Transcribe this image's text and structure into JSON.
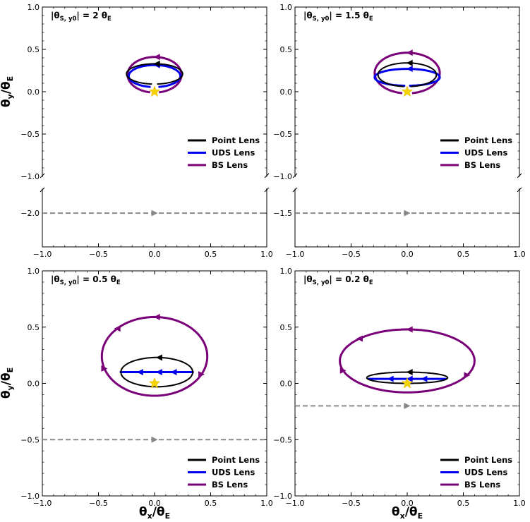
{
  "chart_data": [
    {
      "type": "line",
      "annotation": "|θ_S,y0| = 2 θ_E",
      "annotation_main": "|θ",
      "annotation_sub": "S, y0",
      "annotation_tail": "| = 2 θ",
      "annotation_tail_sub": "E",
      "xlabel": "θx/θE",
      "ylabel": "θy/θE",
      "xlim": [
        -1,
        1
      ],
      "ylim_upper": [
        -1,
        1
      ],
      "ylim_lower": [
        -2.35,
        -1.75
      ],
      "x_ticks": [
        "−1.0",
        "−0.5",
        "0.0",
        "0.5",
        "1.0"
      ],
      "y_ticks_upper": [
        "−1.0",
        "−0.5",
        "0.0",
        "0.5",
        "1.0"
      ],
      "y_ticks_lower": [
        "−2.0"
      ],
      "source_track_y": -2.0,
      "lens_star": [
        0.0,
        0.0
      ],
      "series": [
        {
          "name": "Point Lens",
          "color": "#000000",
          "cx": 0.0,
          "cy": 0.21,
          "rx": 0.25,
          "ry": 0.12,
          "gap": 0.18
        },
        {
          "name": "UDS Lens",
          "color": "#0000ee",
          "cx": 0.0,
          "cy": 0.185,
          "rx": 0.23,
          "ry": 0.13,
          "gap": 0.3
        },
        {
          "name": "BS Lens",
          "color": "#7a007a",
          "cx": 0.0,
          "cy": 0.2,
          "rx": 0.24,
          "ry": 0.21,
          "gap": 0.33
        }
      ]
    },
    {
      "type": "line",
      "annotation": "|θ_S,y0| = 1.5 θ_E",
      "annotation_main": "|θ",
      "annotation_sub": "S, y0",
      "annotation_tail": "| = 1.5 θ",
      "annotation_tail_sub": "E",
      "xlabel": "θx/θE",
      "ylabel": "θy/θE",
      "xlim": [
        -1,
        1
      ],
      "ylim_upper": [
        -1,
        1
      ],
      "ylim_lower": [
        -1.85,
        -1.25
      ],
      "x_ticks": [
        "−1.0",
        "−0.5",
        "0.0",
        "0.5",
        "1.0"
      ],
      "y_ticks_upper": [
        "−1.0",
        "−0.5",
        "0.0",
        "0.5",
        "1.0"
      ],
      "y_ticks_lower": [
        "−1.5"
      ],
      "source_track_y": -1.5,
      "lens_star": [
        0.0,
        0.0
      ],
      "series": [
        {
          "name": "Point Lens",
          "color": "#000000",
          "cx": 0.0,
          "cy": 0.2,
          "rx": 0.26,
          "ry": 0.14,
          "gap": 0.22
        },
        {
          "name": "UDS Lens",
          "color": "#0000ee",
          "cx": 0.0,
          "cy": 0.17,
          "rx": 0.29,
          "ry": 0.1,
          "gap": 0.12
        },
        {
          "name": "BS Lens",
          "color": "#7a007a",
          "cx": 0.0,
          "cy": 0.22,
          "rx": 0.29,
          "ry": 0.24,
          "gap": 0.3
        }
      ]
    },
    {
      "type": "line",
      "annotation": "|θ_S,y0| = 0.5 θ_E",
      "annotation_main": "|θ",
      "annotation_sub": "S, y0",
      "annotation_tail": "| = 0.5 θ",
      "annotation_tail_sub": "E",
      "xlabel": "θx/θE",
      "ylabel": "θy/θE",
      "xlim": [
        -1,
        1
      ],
      "ylim": [
        -1,
        1
      ],
      "x_ticks": [
        "−1.0",
        "−0.5",
        "0.0",
        "0.5",
        "1.0"
      ],
      "y_ticks": [
        "−1.0",
        "−0.5",
        "0.0",
        "0.5",
        "1.0"
      ],
      "source_track_y": -0.5,
      "lens_star": [
        0.0,
        0.0
      ],
      "series": [
        {
          "name": "Point Lens",
          "color": "#000000",
          "cx": 0.02,
          "cy": 0.1,
          "rx": 0.32,
          "ry": 0.13,
          "gap": 0.0
        },
        {
          "name": "UDS Lens",
          "color": "#0000ee",
          "cx": 0.02,
          "cy": 0.1,
          "rx": 0.33,
          "ry": 0.0,
          "gap": 0.0
        },
        {
          "name": "BS Lens",
          "color": "#7a007a",
          "cx": 0.0,
          "cy": 0.24,
          "rx": 0.47,
          "ry": 0.35,
          "gap": 0.0
        }
      ]
    },
    {
      "type": "line",
      "annotation": "|θ_S,y0| = 0.2 θ_E",
      "annotation_main": "|θ",
      "annotation_sub": "S, y0",
      "annotation_tail": "| = 0.2 θ",
      "annotation_tail_sub": "E",
      "xlabel": "θx/θE",
      "ylabel": "θy/θE",
      "xlim": [
        -1,
        1
      ],
      "ylim": [
        -1,
        1
      ],
      "x_ticks": [
        "−1.0",
        "−0.5",
        "0.0",
        "0.5",
        "1.0"
      ],
      "y_ticks": [
        "−1.0",
        "−0.5",
        "0.0",
        "0.5",
        "1.0"
      ],
      "source_track_y": -0.2,
      "lens_star": [
        0.0,
        0.0
      ],
      "series": [
        {
          "name": "Point Lens",
          "color": "#000000",
          "cx": 0.0,
          "cy": 0.05,
          "rx": 0.36,
          "ry": 0.05,
          "gap": 0.0
        },
        {
          "name": "UDS Lens",
          "color": "#0000ee",
          "cx": 0.0,
          "cy": 0.04,
          "rx": 0.35,
          "ry": 0.0,
          "gap": 0.0
        },
        {
          "name": "BS Lens",
          "color": "#7a007a",
          "cx": 0.0,
          "cy": 0.2,
          "rx": 0.6,
          "ry": 0.28,
          "gap": 0.0
        }
      ]
    }
  ],
  "legend": [
    "Point Lens",
    "UDS Lens",
    "BS Lens"
  ],
  "axis_labels": {
    "x_main": "θ",
    "x_sub1": "x",
    "x_mid": "/θ",
    "x_sub2": "E",
    "y_main": "θ",
    "y_sub1": "y",
    "y_mid": "/θ",
    "y_sub2": "E"
  }
}
